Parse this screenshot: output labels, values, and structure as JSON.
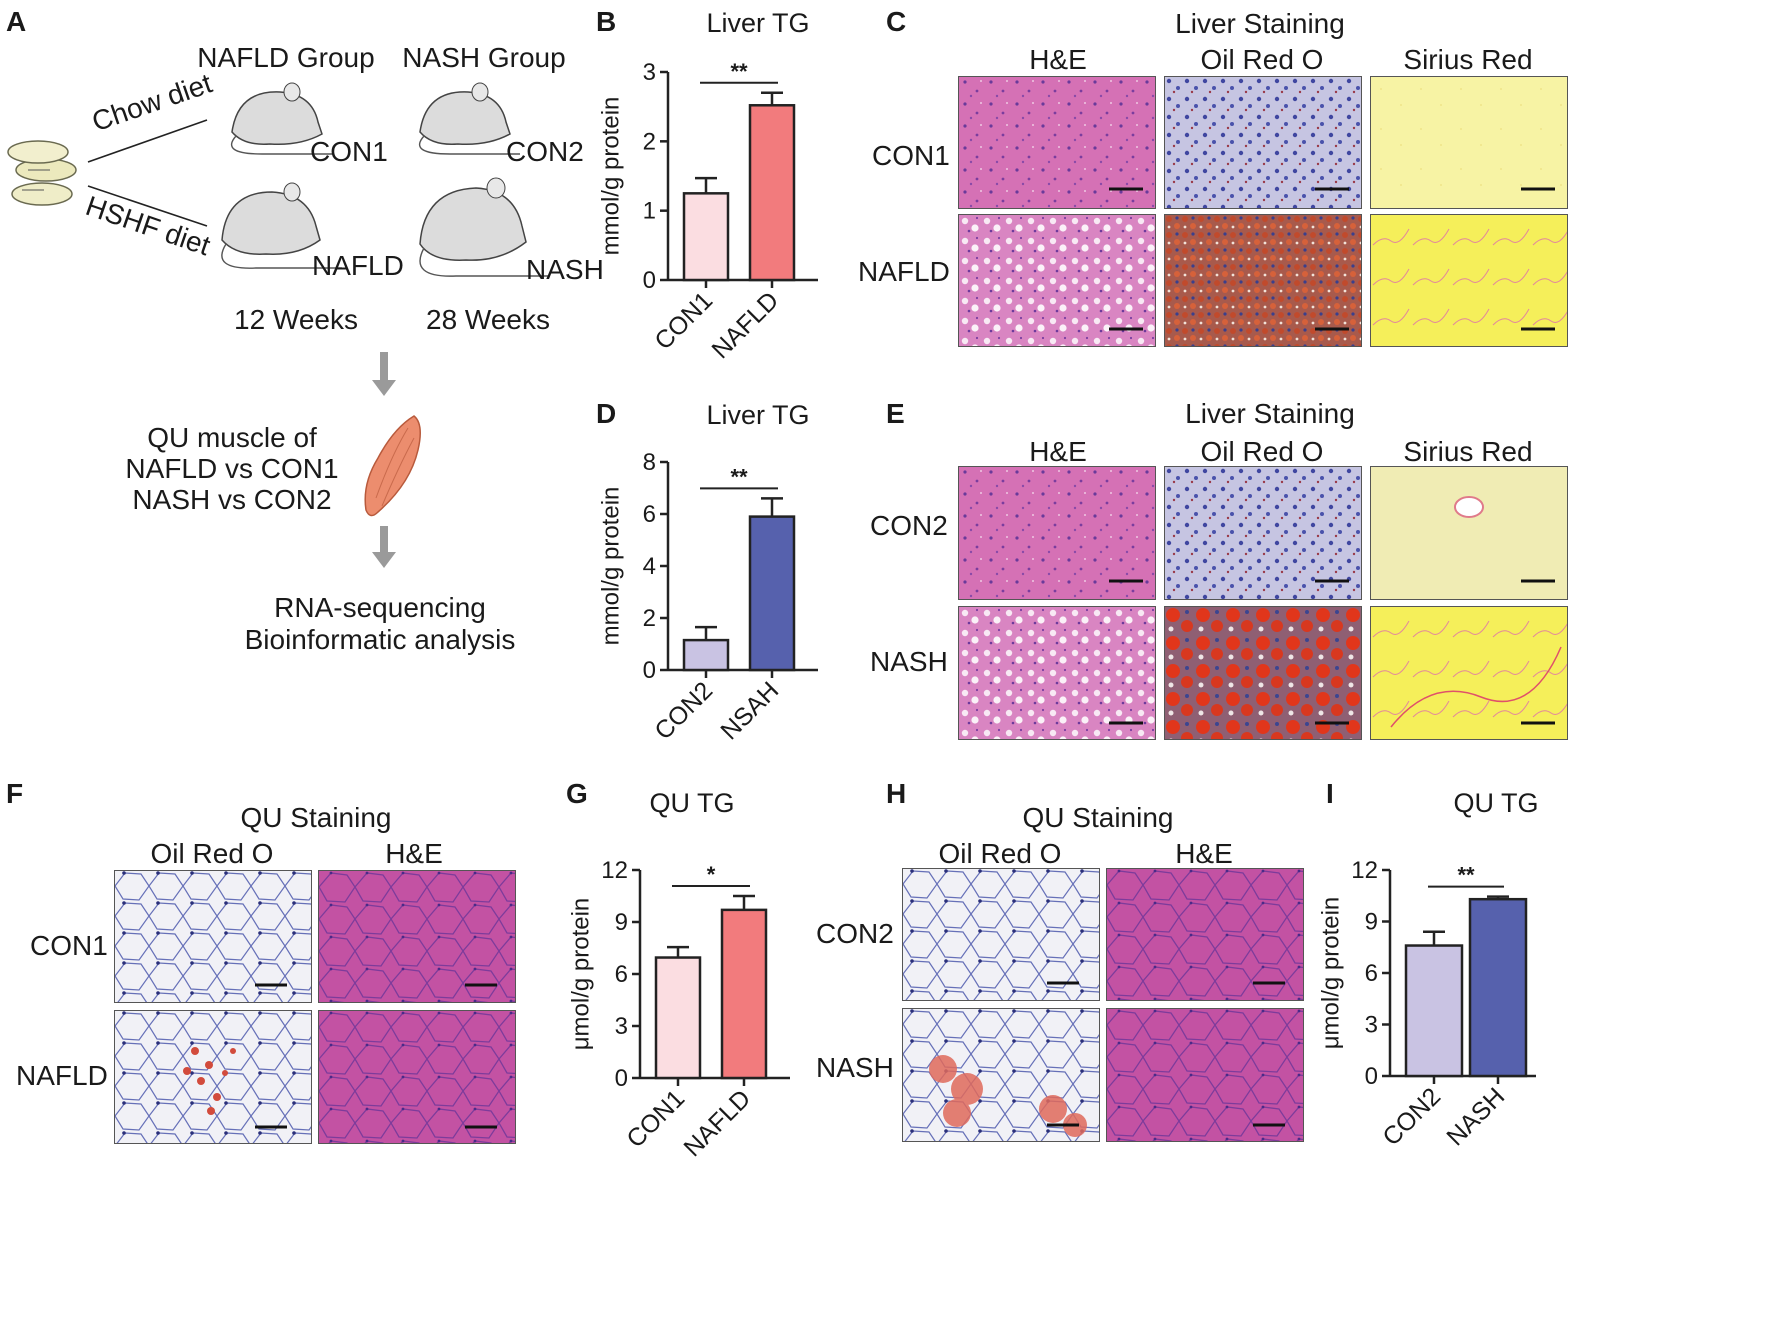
{
  "colors": {
    "con_pink": "#fbdde1",
    "disease_red": "#f27b7d",
    "con_lavender": "#c9c3e3",
    "disease_blue": "#5661ad",
    "he_pink": "#d36fb2",
    "oro_blue": "#aeb0d8",
    "oro_red": "#c0432e",
    "sirius_yellow": "#f7f19a",
    "muscle_orange": "#ec8d6e"
  },
  "panel_a": {
    "label": "A",
    "nafld_group": "NAFLD Group",
    "nash_group": "NASH Group",
    "chow_diet": "Chow diet",
    "hshf_diet": "HSHF diet",
    "mice": [
      "CON1",
      "CON2",
      "NAFLD",
      "NASH"
    ],
    "weeks_12": "12 Weeks",
    "weeks_28": "28 Weeks",
    "muscle_lines": [
      "QU muscle of",
      "NAFLD vs CON1",
      "NASH vs CON2"
    ],
    "analysis_lines": [
      "RNA-sequencing",
      "Bioinformatic analysis"
    ],
    "icons": [
      "food-pellet-icon",
      "mouse-icon",
      "down-arrow-icon",
      "muscle-icon"
    ]
  },
  "panel_c": {
    "label": "C",
    "title": "Liver Staining",
    "columns": [
      "H&E",
      "Oil Red O",
      "Sirius Red"
    ],
    "rows": [
      "CON1",
      "NAFLD"
    ]
  },
  "panel_e": {
    "label": "E",
    "title": "Liver Staining",
    "columns": [
      "H&E",
      "Oil Red O",
      "Sirius Red"
    ],
    "rows": [
      "CON2",
      "NASH"
    ]
  },
  "panel_f": {
    "label": "F",
    "title": "QU Staining",
    "columns": [
      "Oil Red O",
      "H&E"
    ],
    "rows": [
      "CON1",
      "NAFLD"
    ]
  },
  "panel_h": {
    "label": "H",
    "title": "QU Staining",
    "columns": [
      "Oil Red O",
      "H&E"
    ],
    "rows": [
      "CON2",
      "NASH"
    ]
  },
  "chart_data": [
    {
      "panel": "B",
      "type": "bar",
      "title": "Liver TG",
      "ylabel": "mmol/g protein",
      "categories": [
        "CON1",
        "NAFLD"
      ],
      "values": [
        1.25,
        2.52
      ],
      "errors": [
        0.22,
        0.18
      ],
      "ylim": [
        0,
        3
      ],
      "yticks": [
        0,
        1,
        2,
        3
      ],
      "significance": "**",
      "bar_colors": [
        "#fbdde1",
        "#f27b7d"
      ]
    },
    {
      "panel": "D",
      "type": "bar",
      "title": "Liver TG",
      "ylabel": "mmol/g protein",
      "categories": [
        "CON2",
        "NSAH"
      ],
      "values": [
        1.15,
        5.9
      ],
      "errors": [
        0.5,
        0.7
      ],
      "ylim": [
        0,
        8
      ],
      "yticks": [
        0,
        2,
        4,
        6,
        8
      ],
      "significance": "**",
      "bar_colors": [
        "#c9c3e3",
        "#5661ad"
      ]
    },
    {
      "panel": "G",
      "type": "bar",
      "title": "QU TG",
      "ylabel": "μmol/g protein",
      "categories": [
        "CON1",
        "NAFLD"
      ],
      "values": [
        6.95,
        9.7
      ],
      "errors": [
        0.6,
        0.8
      ],
      "ylim": [
        0,
        12
      ],
      "yticks": [
        0,
        3,
        6,
        9,
        12
      ],
      "significance": "*",
      "bar_colors": [
        "#fbdde1",
        "#f27b7d"
      ]
    },
    {
      "panel": "I",
      "type": "bar",
      "title": "QU TG",
      "ylabel": "μmol/g protein",
      "categories": [
        "CON2",
        "NASH"
      ],
      "values": [
        7.6,
        10.3
      ],
      "errors": [
        0.8,
        0.15
      ],
      "ylim": [
        0,
        12
      ],
      "yticks": [
        0,
        3,
        6,
        9,
        12
      ],
      "significance": "**",
      "bar_colors": [
        "#c9c3e3",
        "#5661ad"
      ]
    }
  ]
}
